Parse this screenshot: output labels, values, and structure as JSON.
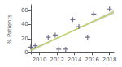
{
  "chart_data": {
    "type": "scatter",
    "ylabel": "% Patients",
    "xlim": [
      2009,
      2018.5
    ],
    "ylim": [
      -2,
      68
    ],
    "xticks": [
      2010,
      2012,
      2014,
      2016,
      2018
    ],
    "yticks": [
      0,
      20,
      40,
      60
    ],
    "grid": false,
    "series": [
      {
        "type": "band",
        "color": "#bbbbbb",
        "x": [
          2009,
          2010,
          2011,
          2012,
          2013,
          2014,
          2015,
          2016,
          2017,
          2018,
          2018.5
        ],
        "lower": [
          1.559,
          7.582,
          13.565,
          19.477,
          25.278,
          30.939,
          36.478,
          41.936,
          47.347,
          52.73,
          55.415
        ],
        "upper": [
          5.365,
          10.767,
          16.209,
          21.721,
          27.346,
          33.11,
          38.996,
          44.963,
          50.977,
          57.019,
          60.047
        ]
      },
      {
        "type": "line",
        "x": [
          2009,
          2018.5
        ],
        "values": [
          3.462,
          57.731
        ]
      },
      {
        "type": "scatter",
        "marker": "plus",
        "x": [
          2009,
          2009.5,
          2011,
          2011.8,
          2012.2,
          2013.0,
          2013.8,
          2014.5,
          2015.5,
          2016.2,
          2018
        ],
        "values": [
          8,
          10,
          22,
          25,
          5,
          5,
          47,
          37,
          22,
          55,
          62
        ]
      }
    ]
  }
}
